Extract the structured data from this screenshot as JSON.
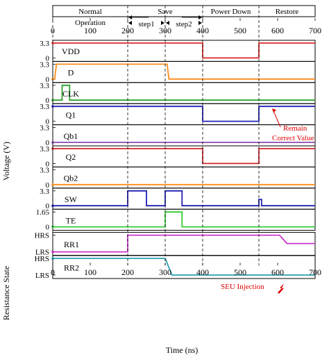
{
  "chart_data": {
    "type": "line",
    "xlabel": "Time (ns)",
    "ylabel_voltage": "Voltage (V)",
    "ylabel_resistance": "Resistance State",
    "xlim": [
      0,
      700
    ],
    "xticks": [
      "0",
      "100",
      "200",
      "300",
      "400",
      "500",
      "600",
      "700"
    ],
    "phase_lines": [
      0,
      200,
      300,
      400,
      550,
      700
    ],
    "phases": [
      {
        "label": "Normal",
        "label2": "Operation",
        "x0": 0,
        "x1": 200
      },
      {
        "label": "Save",
        "label2": "",
        "x0": 200,
        "x1": 400
      },
      {
        "label": "Power Down",
        "label2": "",
        "x0": 400,
        "x1": 550
      },
      {
        "label": "Restore",
        "label2": "",
        "x0": 550,
        "x1": 700
      }
    ],
    "subphases": [
      {
        "label": "step1",
        "x0": 200,
        "x1": 300
      },
      {
        "label": "step2",
        "x0": 300,
        "x1": 400
      }
    ],
    "series": [
      {
        "name": "VDD",
        "color": "#d62728",
        "ytop_label": "3.3",
        "ybot_label": "0",
        "ymax": 3.3,
        "ymin": 0,
        "points": [
          [
            0,
            3.3
          ],
          [
            400,
            3.3
          ],
          [
            400,
            0
          ],
          [
            550,
            0
          ],
          [
            550,
            3.3
          ],
          [
            700,
            3.3
          ]
        ]
      },
      {
        "name": "D",
        "color": "#ff8c1a",
        "ytop_label": "3.3",
        "ybot_label": "0",
        "ymax": 3.3,
        "ymin": 0,
        "points": [
          [
            0,
            0
          ],
          [
            5,
            0
          ],
          [
            10,
            3.3
          ],
          [
            305,
            3.3
          ],
          [
            310,
            0
          ],
          [
            700,
            0
          ]
        ]
      },
      {
        "name": "CLK",
        "color": "#2ca02c",
        "ytop_label": "3.3",
        "ybot_label": "0",
        "ymax": 3.3,
        "ymin": 0,
        "points": [
          [
            0,
            0
          ],
          [
            25,
            0
          ],
          [
            25,
            3.3
          ],
          [
            45,
            3.3
          ],
          [
            45,
            0
          ],
          [
            700,
            0
          ]
        ]
      },
      {
        "name": "Q1",
        "color": "#1f1fb4",
        "ytop_label": "3.3",
        "ybot_label": "0",
        "ymax": 3.3,
        "ymin": 0,
        "points": [
          [
            0,
            3.3
          ],
          [
            400,
            3.3
          ],
          [
            400,
            0
          ],
          [
            550,
            0
          ],
          [
            550,
            3.3
          ],
          [
            700,
            3.3
          ]
        ]
      },
      {
        "name": "Qb1",
        "color": "#8e44ad",
        "ytop_label": "3.3",
        "ybot_label": "0",
        "ymax": 3.3,
        "ymin": 0,
        "points": [
          [
            0,
            0
          ],
          [
            700,
            0
          ]
        ]
      },
      {
        "name": "Q2",
        "color": "#d62728",
        "ytop_label": "3.3",
        "ybot_label": "0",
        "ymax": 3.3,
        "ymin": 0,
        "points": [
          [
            0,
            3.3
          ],
          [
            400,
            3.3
          ],
          [
            400,
            0
          ],
          [
            550,
            0
          ],
          [
            550,
            3.3
          ],
          [
            700,
            3.3
          ]
        ]
      },
      {
        "name": "Qb2",
        "color": "#ff8c1a",
        "ytop_label": "3.3",
        "ybot_label": "0",
        "ymax": 3.3,
        "ymin": 0,
        "points": [
          [
            0,
            0
          ],
          [
            700,
            0
          ]
        ]
      },
      {
        "name": "SW",
        "color": "#1f1fb4",
        "ytop_label": "3.3",
        "ybot_label": "0",
        "ymax": 3.3,
        "ymin": 0,
        "points": [
          [
            0,
            0
          ],
          [
            200,
            0
          ],
          [
            200,
            3.3
          ],
          [
            250,
            3.3
          ],
          [
            250,
            0
          ],
          [
            300,
            0
          ],
          [
            300,
            3.3
          ],
          [
            345,
            3.3
          ],
          [
            345,
            0
          ],
          [
            550,
            0
          ],
          [
            550,
            1.4
          ],
          [
            557,
            1.4
          ],
          [
            557,
            0
          ],
          [
            700,
            0
          ]
        ]
      },
      {
        "name": "TE",
        "color": "#33cc33",
        "ytop_label": "1.65",
        "ybot_label": "0",
        "ymax": 1.65,
        "ymin": 0,
        "points": [
          [
            0,
            0
          ],
          [
            300,
            0
          ],
          [
            300,
            1.65
          ],
          [
            345,
            1.65
          ],
          [
            345,
            0
          ],
          [
            700,
            0
          ]
        ]
      },
      {
        "name": "RR1",
        "color": "#cc33cc",
        "ytop_label": "HRS",
        "ybot_label": "LRS",
        "ymax": 1,
        "ymin": 0,
        "points": [
          [
            0,
            0
          ],
          [
            200,
            0
          ],
          [
            200,
            1
          ],
          [
            605,
            1
          ],
          [
            625,
            0.5
          ],
          [
            700,
            0.5
          ]
        ]
      },
      {
        "name": "RR2",
        "color": "#2a9fb4",
        "ytop_label": "HRS",
        "ybot_label": "LRS",
        "ymax": 1,
        "ymin": 0,
        "points": [
          [
            0,
            1
          ],
          [
            300,
            1
          ],
          [
            318,
            0
          ],
          [
            700,
            0
          ]
        ]
      }
    ],
    "annotations": {
      "remain_line1": "Remain",
      "remain_line2": "Correct Value",
      "seu": "SEU Injection"
    }
  }
}
